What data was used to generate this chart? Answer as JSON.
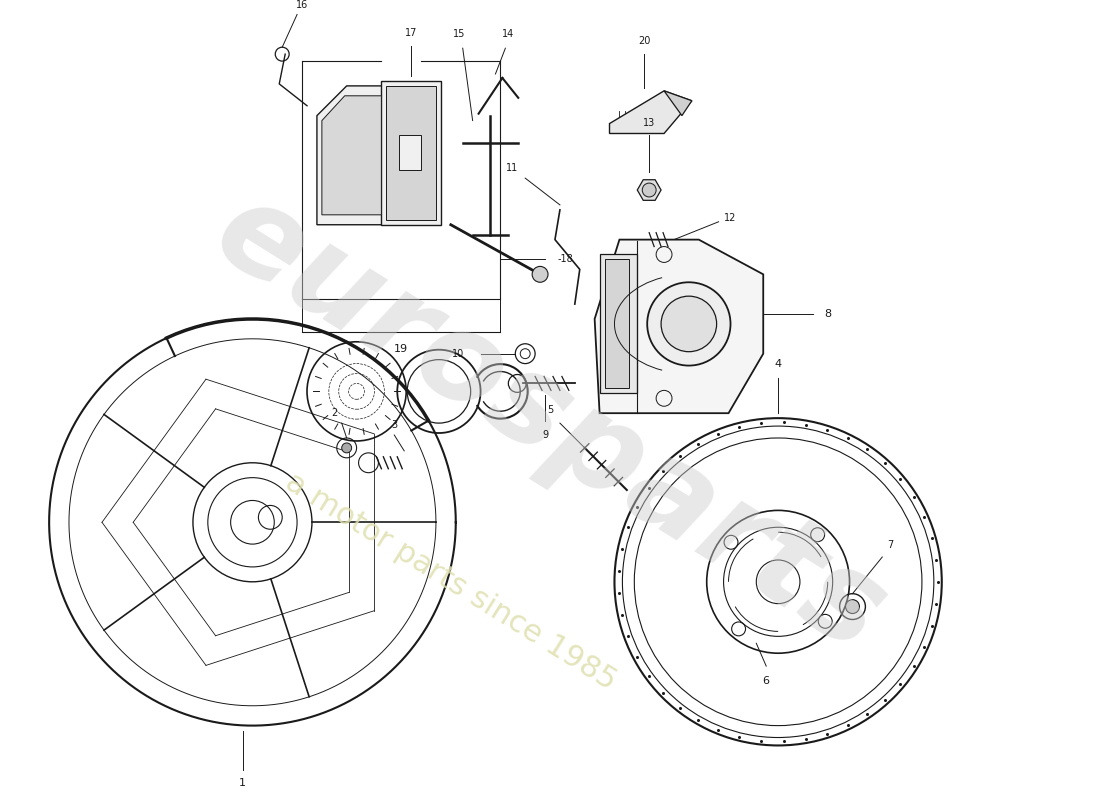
{
  "background_color": "#ffffff",
  "line_color": "#1a1a1a",
  "watermark1": "eurosparts",
  "watermark2": "a motor parts since 1985",
  "wm_color1": "#cccccc",
  "wm_color2": "#e0e0b0",
  "fig_w": 11.0,
  "fig_h": 8.0,
  "dpi": 100
}
